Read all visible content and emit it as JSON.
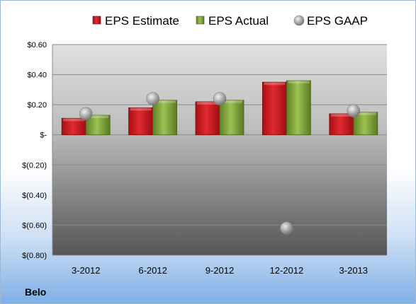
{
  "company": "Belo",
  "chart_data": {
    "type": "bar",
    "categories": [
      "3-2012",
      "6-2012",
      "9-2012",
      "12-2012",
      "3-2013"
    ],
    "series": [
      {
        "name": "EPS Estimate",
        "kind": "bar",
        "color": "#c8161d",
        "values": [
          0.11,
          0.18,
          0.22,
          0.35,
          0.14
        ]
      },
      {
        "name": "EPS Actual",
        "kind": "bar",
        "color": "#7fa339",
        "values": [
          0.13,
          0.23,
          0.23,
          0.36,
          0.15
        ]
      },
      {
        "name": "EPS GAAP",
        "kind": "scatter",
        "color": "#b4b4b4",
        "values": [
          0.14,
          0.24,
          0.24,
          -0.62,
          0.16
        ]
      }
    ],
    "y_ticks": [
      0.6,
      0.4,
      0.2,
      0,
      -0.2,
      -0.4,
      -0.6,
      -0.8
    ],
    "y_tick_labels": [
      "$0.60",
      "$0.40",
      "$0.20",
      "$-",
      "$(0.20)",
      "$(0.40)",
      "$(0.60)",
      "$(0.80)"
    ],
    "ylim": [
      -0.8,
      0.6
    ],
    "grid": true,
    "legend_position": "top"
  }
}
